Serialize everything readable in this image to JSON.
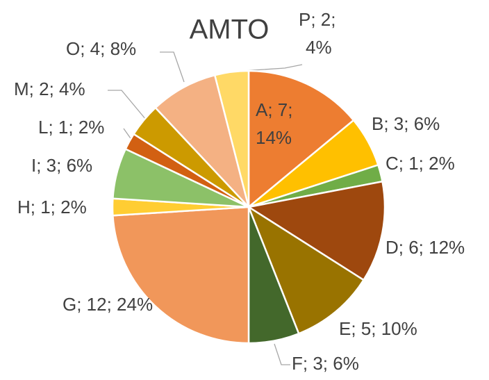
{
  "chart_data": {
    "type": "pie",
    "title": "AMTO",
    "categories": [
      "A",
      "B",
      "C",
      "D",
      "E",
      "F",
      "G",
      "H",
      "I",
      "L",
      "M",
      "O",
      "P"
    ],
    "values": [
      7,
      3,
      1,
      6,
      5,
      3,
      12,
      1,
      3,
      1,
      2,
      4,
      2
    ],
    "value_labels": [
      "A; 7; 14%",
      "B; 3; 6%",
      "C; 1; 2%",
      "D; 6; 12%",
      "E; 5; 10%",
      "F; 3; 6%",
      "G; 12; 24%",
      "H; 1; 2%",
      "I; 3; 6%",
      "L; 1; 2%",
      "M; 2; 4%",
      "O; 4; 8%",
      "P; 2; 4%"
    ],
    "colors": [
      "#ed7d31",
      "#ffc000",
      "#70ad47",
      "#9e480e",
      "#997300",
      "#43682b",
      "#f1975a",
      "#ffcd33",
      "#8cc168",
      "#d26012",
      "#cc9a00",
      "#f4b183",
      "#ffd966"
    ]
  }
}
